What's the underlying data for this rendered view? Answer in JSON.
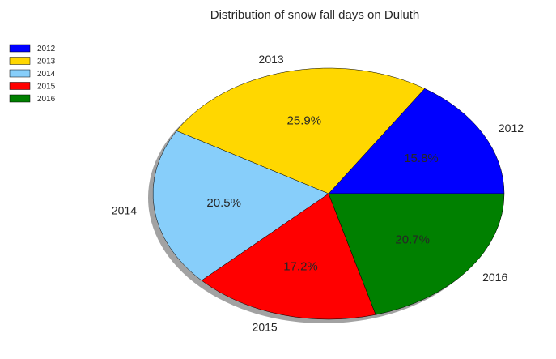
{
  "chart_data": {
    "type": "pie",
    "title": "Distribution of snow fall days on Duluth",
    "categories": [
      "2012",
      "2013",
      "2014",
      "2015",
      "2016"
    ],
    "values": [
      15.8,
      25.9,
      20.5,
      17.2,
      20.7
    ],
    "value_labels": [
      "15.8%",
      "25.9%",
      "20.5%",
      "17.2%",
      "20.7%"
    ],
    "colors": [
      "#0000ff",
      "#ffd700",
      "#87cefa",
      "#ff0000",
      "#008000"
    ],
    "start_angle_deg": 0,
    "direction": "counterclockwise",
    "shadow": true,
    "legend": {
      "position": "top-left",
      "entries": [
        "2012",
        "2013",
        "2014",
        "2015",
        "2016"
      ]
    }
  }
}
